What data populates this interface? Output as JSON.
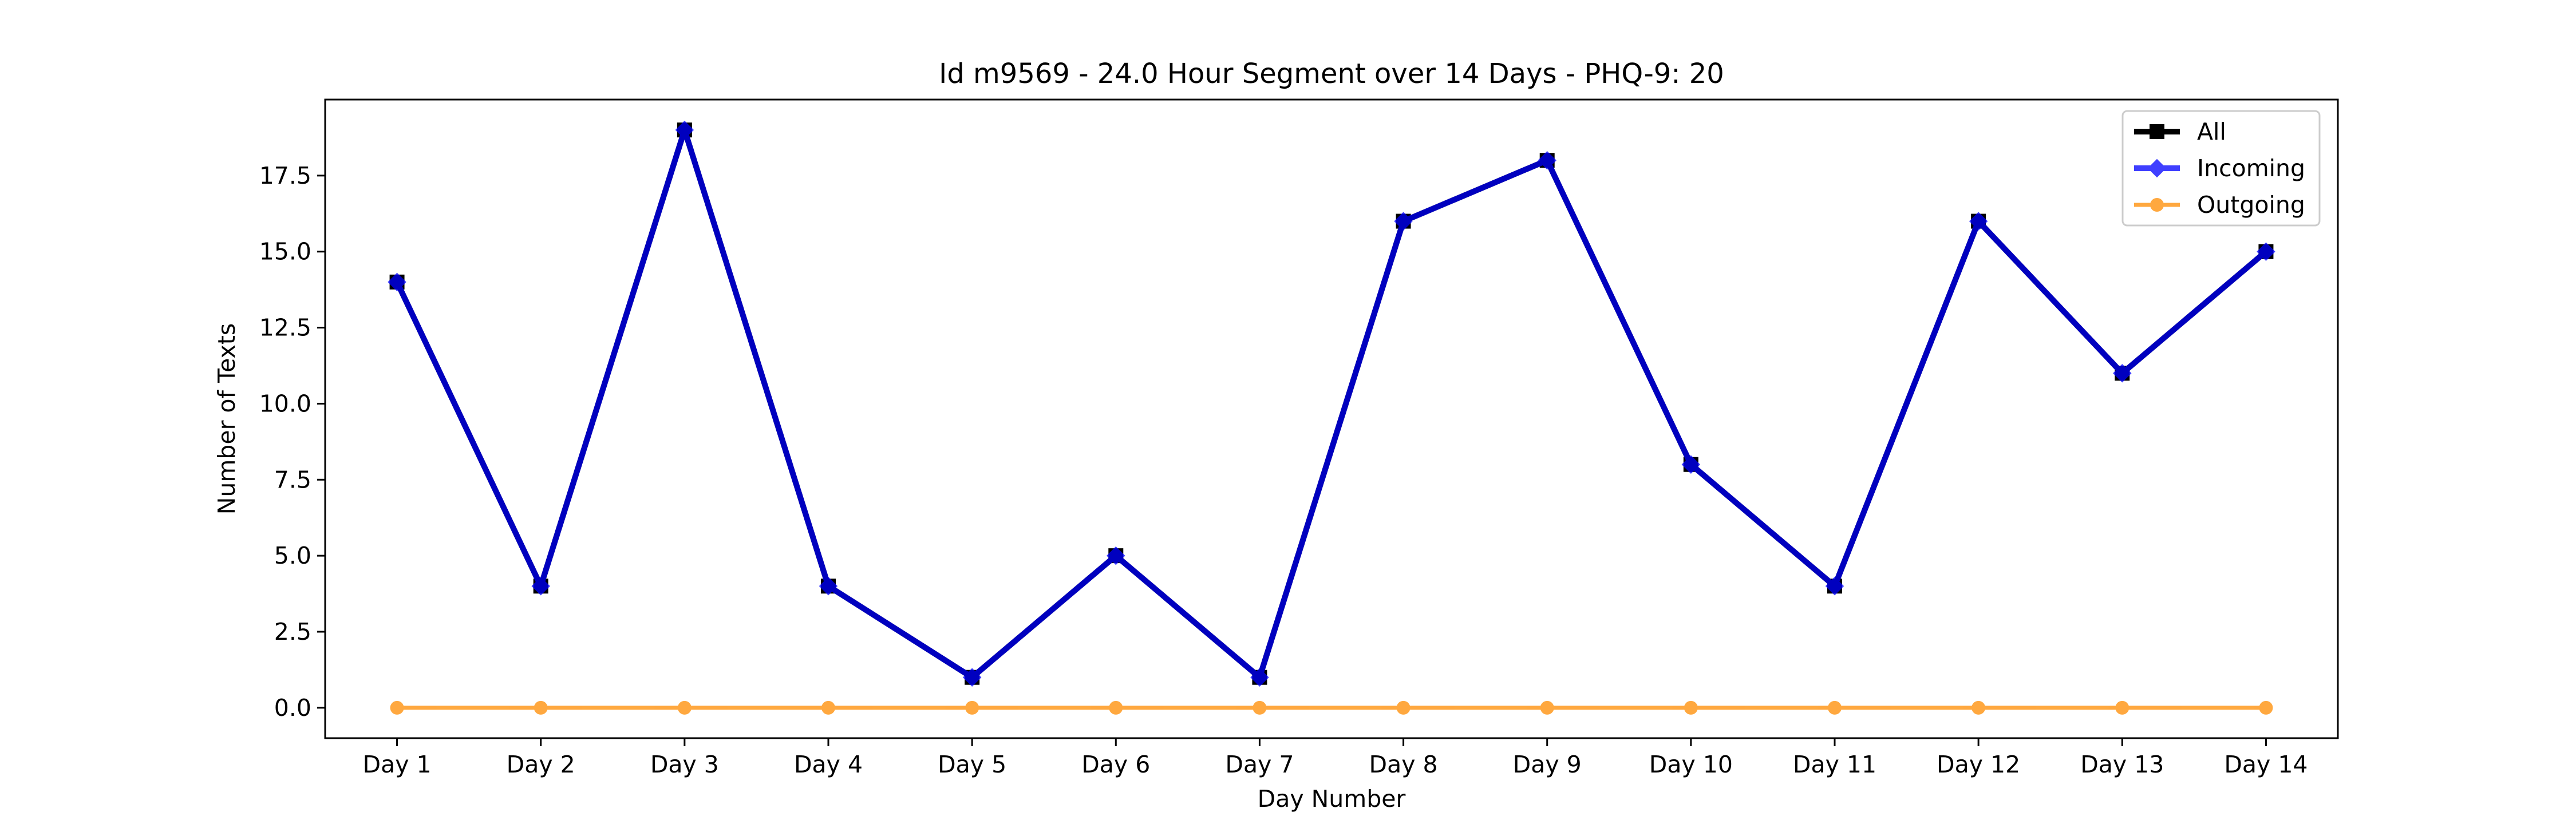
{
  "chart_data": {
    "type": "line",
    "title": "Id m9569 - 24.0 Hour Segment over 14 Days - PHQ-9: 20",
    "xlabel": "Day Number",
    "ylabel": "Number of Texts",
    "categories": [
      "Day 1",
      "Day 2",
      "Day 3",
      "Day 4",
      "Day 5",
      "Day 6",
      "Day 7",
      "Day 8",
      "Day 9",
      "Day 10",
      "Day 11",
      "Day 12",
      "Day 13",
      "Day 14"
    ],
    "ylim": [
      -1,
      20
    ],
    "yticks": [
      0.0,
      2.5,
      5.0,
      7.5,
      10.0,
      12.5,
      15.0,
      17.5
    ],
    "ytick_labels": [
      "0.0",
      "2.5",
      "5.0",
      "7.5",
      "10.0",
      "12.5",
      "15.0",
      "17.5"
    ],
    "grid": false,
    "legend_position": "top-right",
    "series": [
      {
        "name": "All",
        "color": "#000000",
        "marker": "square",
        "values": [
          14,
          4,
          19,
          4,
          1,
          5,
          1,
          16,
          18,
          8,
          4,
          16,
          11,
          15
        ]
      },
      {
        "name": "Incoming",
        "color": "#0000ff",
        "marker": "diamond",
        "values": [
          14,
          4,
          19,
          4,
          1,
          5,
          1,
          16,
          18,
          8,
          4,
          16,
          11,
          15
        ]
      },
      {
        "name": "Outgoing",
        "color": "#ff8c00",
        "marker": "circle",
        "values": [
          0,
          0,
          0,
          0,
          0,
          0,
          0,
          0,
          0,
          0,
          0,
          0,
          0,
          0
        ]
      }
    ]
  }
}
